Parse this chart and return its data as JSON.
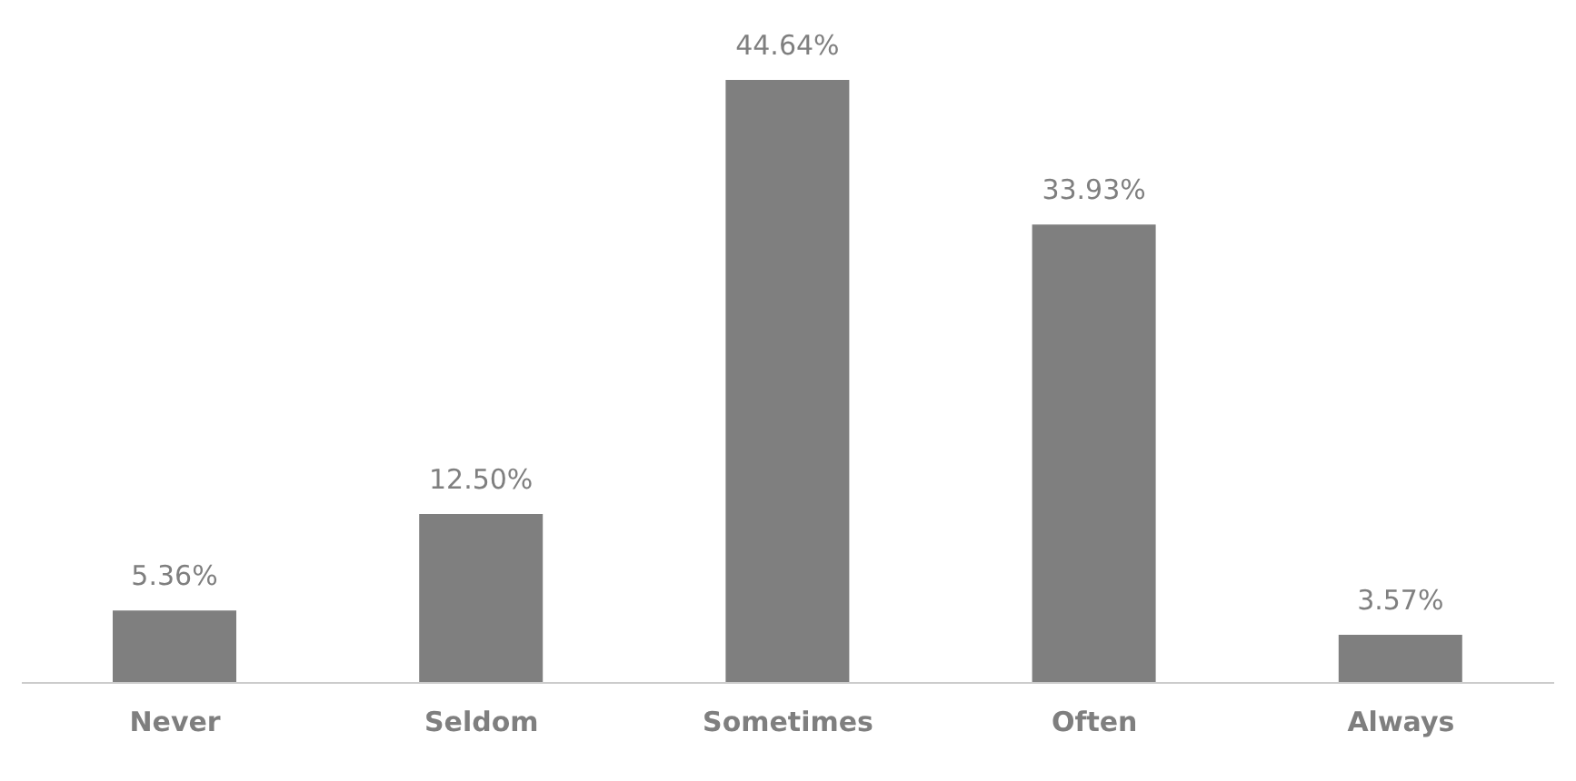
{
  "chart_data": {
    "type": "bar",
    "categories": [
      "Never",
      "Seldom",
      "Sometimes",
      "Often",
      "Always"
    ],
    "values": [
      5.36,
      12.5,
      44.64,
      33.93,
      3.57
    ],
    "value_labels": [
      "5.36%",
      "12.50%",
      "44.64%",
      "33.93%",
      "3.57%"
    ],
    "color": "#7f7f7f",
    "grid": false,
    "legend": false
  }
}
